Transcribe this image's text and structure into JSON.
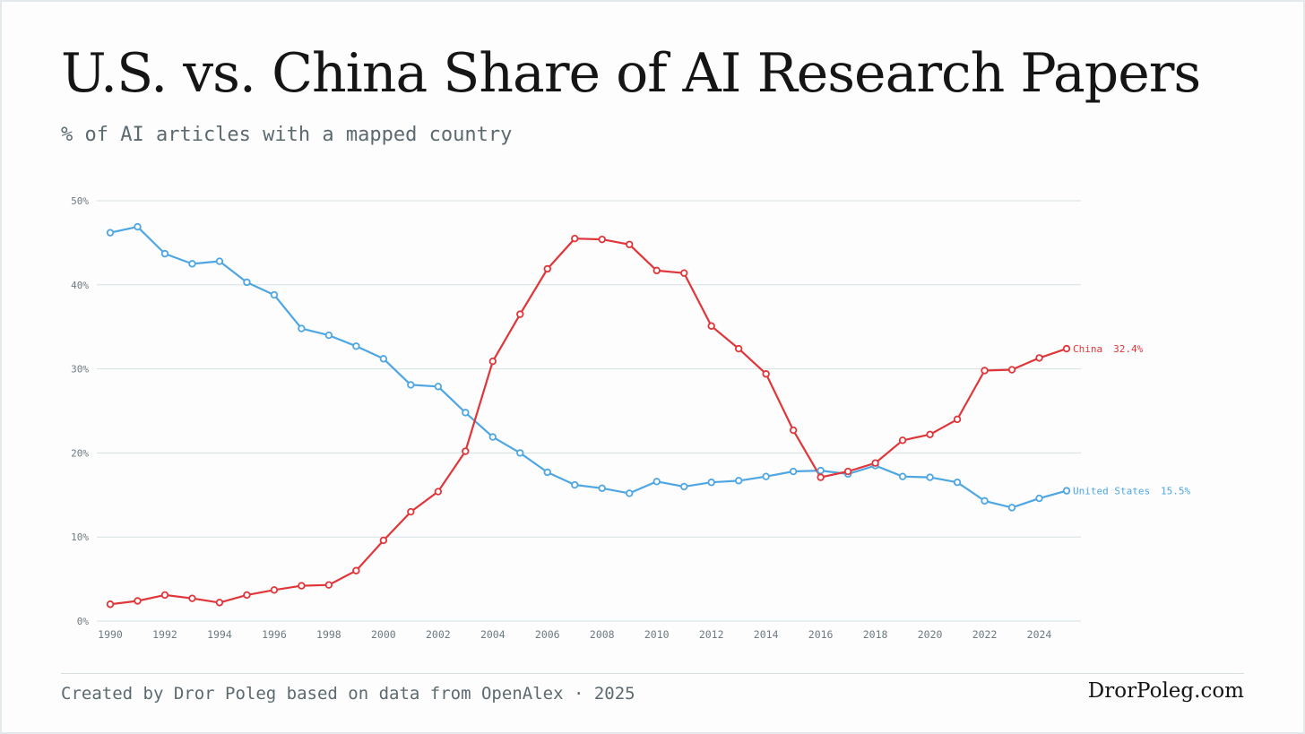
{
  "header": {
    "title": "U.S. vs. China Share of AI Research Papers",
    "subtitle": "% of AI articles with a mapped country"
  },
  "footer": {
    "credit": "Created by Dror Poleg based on data from OpenAlex · 2025",
    "brand": "DrorPoleg.com"
  },
  "chart_data": {
    "type": "line",
    "title": "U.S. vs. China Share of AI Research Papers",
    "subtitle": "% of AI articles with a mapped country",
    "xlabel": "",
    "ylabel": "",
    "x": [
      1990,
      1991,
      1992,
      1993,
      1994,
      1995,
      1996,
      1997,
      1998,
      1999,
      2000,
      2001,
      2002,
      2003,
      2004,
      2005,
      2006,
      2007,
      2008,
      2009,
      2010,
      2011,
      2012,
      2013,
      2014,
      2015,
      2016,
      2017,
      2018,
      2019,
      2020,
      2021,
      2022,
      2023,
      2024,
      2025
    ],
    "xlim": [
      1990,
      2025
    ],
    "ylim": [
      0,
      50
    ],
    "x_ticks": [
      "1990",
      "1992",
      "1994",
      "1996",
      "1998",
      "2000",
      "2002",
      "2004",
      "2006",
      "2008",
      "2010",
      "2012",
      "2014",
      "2016",
      "2018",
      "2020",
      "2022",
      "2024"
    ],
    "y_ticks": [
      "0%",
      "10%",
      "20%",
      "30%",
      "40%",
      "50%"
    ],
    "grid": true,
    "legend": "end-of-line labels",
    "series": [
      {
        "name": "United States",
        "end_label": "United States",
        "end_value_label": "15.5%",
        "color": "#4ea6e2",
        "values": [
          46.2,
          46.9,
          43.7,
          42.5,
          42.8,
          40.3,
          38.8,
          34.8,
          34.0,
          32.7,
          31.2,
          28.1,
          27.9,
          24.8,
          21.9,
          20.0,
          17.7,
          16.2,
          15.8,
          15.2,
          16.6,
          16.0,
          16.5,
          16.7,
          17.2,
          17.8,
          17.9,
          17.5,
          18.5,
          17.2,
          17.1,
          16.5,
          14.3,
          13.5,
          14.6,
          15.5
        ]
      },
      {
        "name": "China",
        "end_label": "China",
        "end_value_label": "32.4%",
        "color": "#e0363a",
        "values": [
          2.0,
          2.4,
          3.1,
          2.7,
          2.2,
          3.1,
          3.7,
          4.2,
          4.3,
          6.0,
          9.6,
          13.0,
          15.4,
          20.2,
          30.9,
          36.5,
          41.9,
          45.5,
          45.4,
          44.8,
          41.7,
          41.4,
          35.1,
          32.4,
          29.4,
          22.7,
          17.1,
          17.8,
          18.8,
          21.5,
          22.2,
          24.0,
          29.8,
          29.9,
          31.3,
          32.4
        ]
      }
    ]
  }
}
